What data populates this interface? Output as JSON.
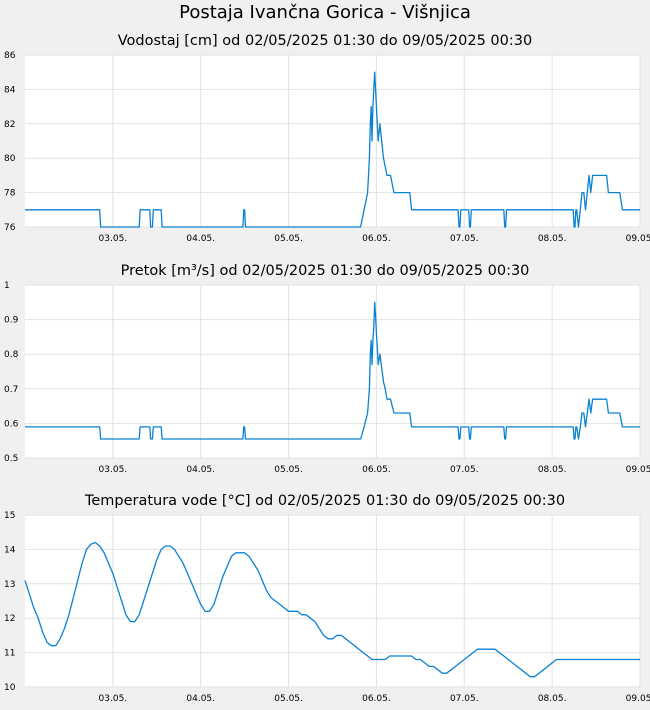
{
  "title": "Postaja Ivančna Gorica - Višnjica",
  "colors": {
    "line": "#0a82d2",
    "grid": "#e2e2e2",
    "panel": "#ffffff",
    "background": "#f0f0f0"
  },
  "chart_data": [
    {
      "type": "line",
      "title": "Vodostaj [cm] od 02/05/2025 01:30 do 09/05/2025 00:30",
      "xlabel": "",
      "ylabel": "",
      "ylim": [
        76,
        86
      ],
      "yticks": [
        "76",
        "78",
        "80",
        "82",
        "84",
        "86"
      ],
      "xticks": [
        "03.05.",
        "04.05.",
        "05.05.",
        "06.05.",
        "07.05.",
        "08.05.",
        "09.05."
      ],
      "x_unit": "day",
      "xlim": [
        2.0,
        9.0
      ],
      "grid": true,
      "series": [
        {
          "x": [
            2.0,
            2.85,
            2.86,
            3.3,
            3.31,
            3.42,
            3.43,
            3.45,
            3.46,
            3.55,
            3.56,
            3.62,
            3.63,
            4.48,
            4.49,
            4.5,
            4.51,
            5.82,
            5.86,
            5.9,
            5.92,
            5.93,
            5.94,
            5.95,
            5.96,
            5.97,
            5.98,
            5.99,
            6.0,
            6.01,
            6.02,
            6.04,
            6.06,
            6.08,
            6.1,
            6.12,
            6.14,
            6.16,
            6.18,
            6.2,
            6.22,
            6.24,
            6.26,
            6.3,
            6.34,
            6.38,
            6.4,
            6.41,
            6.93,
            6.94,
            6.95,
            6.96,
            7.05,
            7.06,
            7.07,
            7.08,
            7.45,
            7.46,
            7.47,
            7.48,
            8.24,
            8.25,
            8.26,
            8.27,
            8.28,
            8.3,
            8.32,
            8.34,
            8.36,
            8.38,
            8.4,
            8.42,
            8.44,
            8.46,
            8.48,
            8.5,
            8.52,
            8.62,
            8.64,
            8.75,
            8.77,
            8.8,
            8.82,
            9.0
          ],
          "values": [
            77,
            77,
            76,
            76,
            77,
            77,
            76,
            76,
            77,
            77,
            76,
            76,
            76,
            76,
            77,
            77,
            76,
            76,
            77,
            78,
            80,
            82,
            83,
            81,
            83,
            84,
            85,
            84,
            83,
            82,
            81,
            82,
            81,
            80,
            79.5,
            79,
            79,
            79,
            78.5,
            78,
            78,
            78,
            78,
            78,
            78,
            78,
            77,
            77,
            77,
            76,
            76,
            77,
            77,
            76,
            76,
            77,
            77,
            76,
            76,
            77,
            77,
            76,
            76,
            77,
            77,
            76,
            77,
            78,
            78,
            77,
            78,
            79,
            78,
            79,
            79,
            79,
            79,
            79,
            78,
            78,
            78,
            77,
            77,
            77
          ]
        }
      ]
    },
    {
      "type": "line",
      "title": "Pretok [m³/s] od 02/05/2025 01:30 do 09/05/2025 00:30",
      "xlabel": "",
      "ylabel": "",
      "ylim": [
        0.5,
        1.0
      ],
      "yticks": [
        "0.5",
        "0.6",
        "0.7",
        "0.8",
        "0.9",
        "1"
      ],
      "xticks": [
        "03.05.",
        "04.05.",
        "05.05.",
        "06.05.",
        "07.05.",
        "08.05.",
        "09.05."
      ],
      "x_unit": "day",
      "xlim": [
        2.0,
        9.0
      ],
      "grid": true,
      "series": [
        {
          "x": [
            2.0,
            2.85,
            2.86,
            3.3,
            3.31,
            3.42,
            3.43,
            3.45,
            3.46,
            3.55,
            3.56,
            3.62,
            3.63,
            4.48,
            4.49,
            4.5,
            4.51,
            5.82,
            5.86,
            5.9,
            5.92,
            5.93,
            5.94,
            5.95,
            5.96,
            5.97,
            5.98,
            5.99,
            6.0,
            6.01,
            6.02,
            6.04,
            6.06,
            6.08,
            6.1,
            6.12,
            6.14,
            6.16,
            6.18,
            6.2,
            6.22,
            6.24,
            6.26,
            6.3,
            6.34,
            6.38,
            6.4,
            6.41,
            6.93,
            6.94,
            6.95,
            6.96,
            7.05,
            7.06,
            7.07,
            7.08,
            7.45,
            7.46,
            7.47,
            7.48,
            8.24,
            8.25,
            8.26,
            8.27,
            8.28,
            8.3,
            8.32,
            8.34,
            8.36,
            8.38,
            8.4,
            8.42,
            8.44,
            8.46,
            8.48,
            8.5,
            8.52,
            8.62,
            8.64,
            8.75,
            8.77,
            8.8,
            8.82,
            9.0
          ],
          "values": [
            0.59,
            0.59,
            0.555,
            0.555,
            0.59,
            0.59,
            0.555,
            0.555,
            0.59,
            0.59,
            0.555,
            0.555,
            0.555,
            0.555,
            0.59,
            0.59,
            0.555,
            0.555,
            0.59,
            0.63,
            0.7,
            0.8,
            0.84,
            0.77,
            0.84,
            0.88,
            0.95,
            0.91,
            0.86,
            0.82,
            0.77,
            0.8,
            0.76,
            0.72,
            0.7,
            0.67,
            0.67,
            0.67,
            0.65,
            0.63,
            0.63,
            0.63,
            0.63,
            0.63,
            0.63,
            0.63,
            0.59,
            0.59,
            0.59,
            0.555,
            0.555,
            0.59,
            0.59,
            0.555,
            0.555,
            0.59,
            0.59,
            0.555,
            0.555,
            0.59,
            0.59,
            0.555,
            0.555,
            0.59,
            0.59,
            0.555,
            0.59,
            0.63,
            0.63,
            0.59,
            0.63,
            0.67,
            0.63,
            0.67,
            0.67,
            0.67,
            0.67,
            0.67,
            0.63,
            0.63,
            0.63,
            0.59,
            0.59,
            0.59
          ]
        }
      ]
    },
    {
      "type": "line",
      "title": "Temperatura vode [°C] od 02/05/2025 01:30 do 09/05/2025 00:30",
      "xlabel": "",
      "ylabel": "",
      "ylim": [
        10,
        15
      ],
      "yticks": [
        "10",
        "11",
        "12",
        "13",
        "14",
        "15"
      ],
      "xticks": [
        "03.05.",
        "04.05.",
        "05.05.",
        "06.05.",
        "07.05.",
        "08.05.",
        "09.05."
      ],
      "x_unit": "day",
      "xlim": [
        2.0,
        9.0
      ],
      "grid": true,
      "series": [
        {
          "x": [
            2.0,
            2.05,
            2.1,
            2.15,
            2.2,
            2.25,
            2.3,
            2.35,
            2.4,
            2.45,
            2.5,
            2.55,
            2.6,
            2.65,
            2.7,
            2.75,
            2.8,
            2.85,
            2.9,
            2.95,
            3.0,
            3.05,
            3.1,
            3.15,
            3.2,
            3.25,
            3.3,
            3.35,
            3.4,
            3.45,
            3.5,
            3.55,
            3.6,
            3.65,
            3.7,
            3.75,
            3.8,
            3.85,
            3.9,
            3.95,
            4.0,
            4.05,
            4.1,
            4.15,
            4.2,
            4.25,
            4.3,
            4.35,
            4.4,
            4.45,
            4.5,
            4.55,
            4.6,
            4.65,
            4.7,
            4.75,
            4.8,
            4.85,
            4.9,
            4.95,
            5.0,
            5.05,
            5.1,
            5.15,
            5.2,
            5.25,
            5.3,
            5.35,
            5.4,
            5.45,
            5.5,
            5.55,
            5.6,
            5.65,
            5.7,
            5.75,
            5.8,
            5.85,
            5.9,
            5.95,
            6.0,
            6.05,
            6.1,
            6.15,
            6.2,
            6.25,
            6.3,
            6.35,
            6.4,
            6.45,
            6.5,
            6.55,
            6.6,
            6.65,
            6.7,
            6.75,
            6.8,
            6.85,
            6.9,
            6.95,
            7.0,
            7.05,
            7.1,
            7.15,
            7.2,
            7.25,
            7.3,
            7.35,
            7.4,
            7.45,
            7.5,
            7.55,
            7.6,
            7.65,
            7.7,
            7.75,
            7.8,
            7.85,
            7.9,
            7.95,
            8.0,
            8.05,
            8.1,
            8.15,
            8.2,
            8.25,
            8.3,
            8.35,
            8.4,
            8.45,
            8.5,
            8.55,
            8.6,
            8.65,
            8.7,
            8.75,
            8.8,
            8.85,
            8.9,
            8.95,
            9.0
          ],
          "values": [
            13.1,
            12.7,
            12.3,
            12.0,
            11.6,
            11.3,
            11.2,
            11.2,
            11.4,
            11.7,
            12.1,
            12.6,
            13.1,
            13.6,
            14.0,
            14.15,
            14.2,
            14.1,
            13.9,
            13.6,
            13.3,
            12.9,
            12.5,
            12.1,
            11.9,
            11.9,
            12.1,
            12.5,
            12.9,
            13.3,
            13.7,
            14.0,
            14.1,
            14.1,
            14.0,
            13.8,
            13.6,
            13.3,
            13.0,
            12.7,
            12.4,
            12.2,
            12.2,
            12.4,
            12.8,
            13.2,
            13.5,
            13.8,
            13.9,
            13.9,
            13.9,
            13.8,
            13.6,
            13.4,
            13.1,
            12.8,
            12.6,
            12.5,
            12.4,
            12.3,
            12.2,
            12.2,
            12.2,
            12.1,
            12.1,
            12.0,
            11.9,
            11.7,
            11.5,
            11.4,
            11.4,
            11.5,
            11.5,
            11.4,
            11.3,
            11.2,
            11.1,
            11.0,
            10.9,
            10.8,
            10.8,
            10.8,
            10.8,
            10.9,
            10.9,
            10.9,
            10.9,
            10.9,
            10.9,
            10.8,
            10.8,
            10.7,
            10.6,
            10.6,
            10.5,
            10.4,
            10.4,
            10.5,
            10.6,
            10.7,
            10.8,
            10.9,
            11.0,
            11.1,
            11.1,
            11.1,
            11.1,
            11.1,
            11.0,
            10.9,
            10.8,
            10.7,
            10.6,
            10.5,
            10.4,
            10.3,
            10.3,
            10.4,
            10.5,
            10.6,
            10.7,
            10.8,
            10.8,
            10.8,
            10.8,
            10.8,
            10.8,
            10.8,
            10.8,
            10.8,
            10.8,
            10.8,
            10.8,
            10.8,
            10.8,
            10.8,
            10.8,
            10.8,
            10.8,
            10.8,
            10.8
          ]
        }
      ]
    }
  ]
}
